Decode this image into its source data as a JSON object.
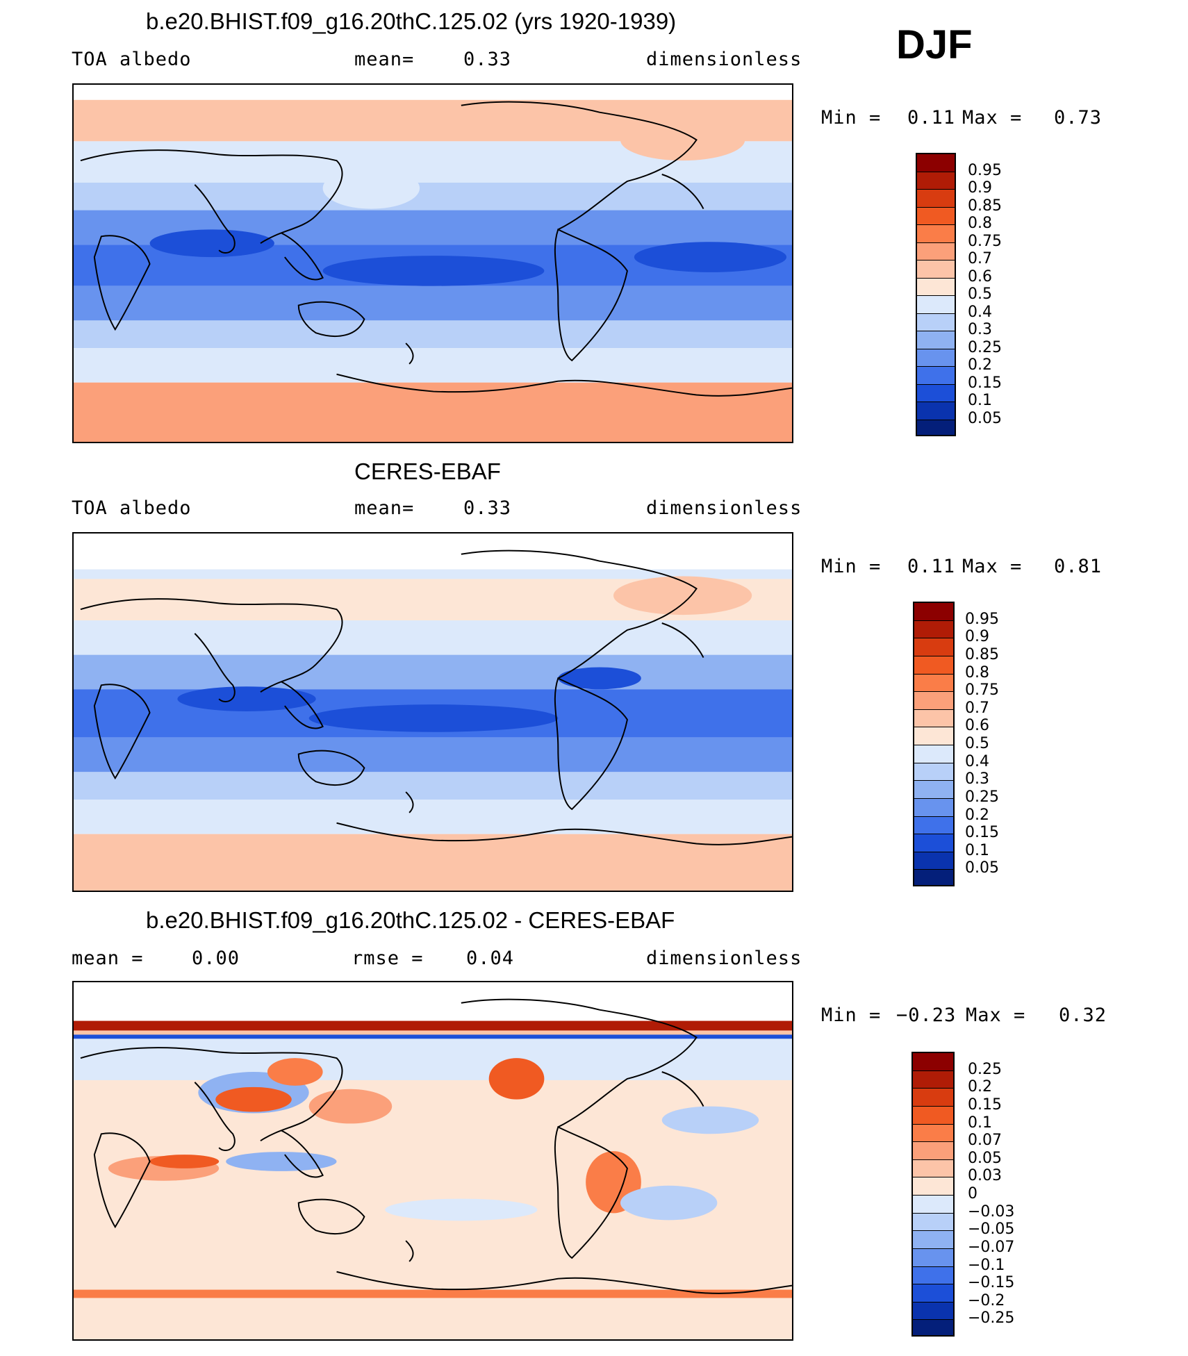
{
  "season": "DJF",
  "panels": [
    {
      "title": "b.e20.BHIST.f09_g16.20thC.125.02 (yrs 1920-1939)",
      "left_label": "TOA albedo",
      "center_label": "mean=",
      "center_value": "0.33",
      "right_label": "dimensionless",
      "min_label": "Min =",
      "min_value": "0.11",
      "max_label": "Max =",
      "max_value": "0.73",
      "colorbar_levels": [
        "0.95",
        "0.9",
        "0.85",
        "0.8",
        "0.75",
        "0.7",
        "0.6",
        "0.5",
        "0.4",
        "0.3",
        "0.25",
        "0.2",
        "0.15",
        "0.1",
        "0.05"
      ],
      "colorbar_colors": [
        "#8c0000",
        "#b01c06",
        "#d83c10",
        "#f05a22",
        "#fa7d48",
        "#fba07a",
        "#fcc4a8",
        "#fde6d6",
        "#dce9fb",
        "#b8d0f8",
        "#8fb2f2",
        "#6893ee",
        "#3f71ea",
        "#1c4fd8",
        "#0a33ae",
        "#041f7a"
      ]
    },
    {
      "title": "CERES-EBAF",
      "left_label": "TOA albedo",
      "center_label": "mean=",
      "center_value": "0.33",
      "right_label": "dimensionless",
      "min_label": "Min =",
      "min_value": "0.11",
      "max_label": "Max =",
      "max_value": "0.81",
      "colorbar_levels": [
        "0.95",
        "0.9",
        "0.85",
        "0.8",
        "0.75",
        "0.7",
        "0.6",
        "0.5",
        "0.4",
        "0.3",
        "0.25",
        "0.2",
        "0.15",
        "0.1",
        "0.05"
      ],
      "colorbar_colors": [
        "#8c0000",
        "#b01c06",
        "#d83c10",
        "#f05a22",
        "#fa7d48",
        "#fba07a",
        "#fcc4a8",
        "#fde6d6",
        "#dce9fb",
        "#b8d0f8",
        "#8fb2f2",
        "#6893ee",
        "#3f71ea",
        "#1c4fd8",
        "#0a33ae",
        "#041f7a"
      ]
    },
    {
      "title": "b.e20.BHIST.f09_g16.20thC.125.02 - CERES-EBAF",
      "left_label": "mean =",
      "left_value": "0.00",
      "center_label": "rmse =",
      "center_value": "0.04",
      "right_label": "dimensionless",
      "min_label": "Min =",
      "min_value": "−0.23",
      "max_label": "Max =",
      "max_value": "0.32",
      "colorbar_levels": [
        "0.25",
        "0.2",
        "0.15",
        "0.1",
        "0.07",
        "0.05",
        "0.03",
        "0",
        "−0.03",
        "−0.05",
        "−0.07",
        "−0.1",
        "−0.15",
        "−0.2",
        "−0.25"
      ],
      "colorbar_colors": [
        "#8c0000",
        "#b01c06",
        "#d83c10",
        "#f05a22",
        "#fa7d48",
        "#fba07a",
        "#fcc4a8",
        "#fde6d6",
        "#dce9fb",
        "#b8d0f8",
        "#8fb2f2",
        "#6893ee",
        "#3f71ea",
        "#1c4fd8",
        "#0a33ae",
        "#041f7a"
      ]
    }
  ]
}
